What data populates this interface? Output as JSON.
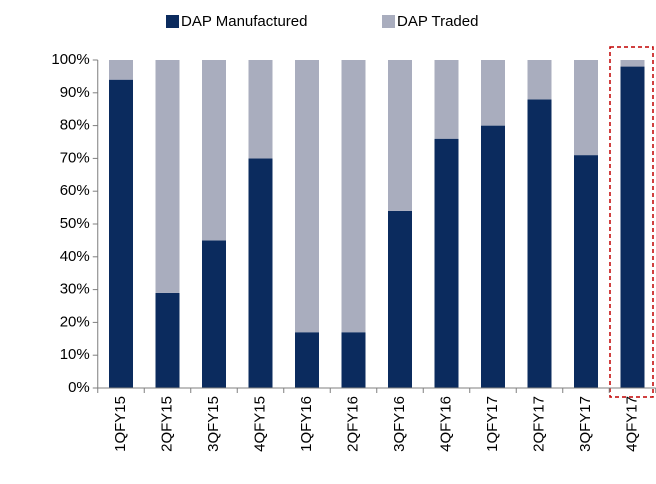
{
  "chart_data": {
    "type": "stacked_bar",
    "categories": [
      "1QFY15",
      "2QFY15",
      "3QFY15",
      "4QFY15",
      "1QFY16",
      "2QFY16",
      "3QFY16",
      "4QFY16",
      "1QFY17",
      "2QFY17",
      "3QFY17",
      "4QFY17"
    ],
    "series": [
      {
        "name": "DAP Manufactured",
        "color": "#0b2b5e",
        "values": [
          94,
          29,
          45,
          70,
          17,
          17,
          54,
          76,
          80,
          88,
          71,
          98
        ]
      },
      {
        "name": "DAP Traded",
        "color": "#a9adbe",
        "values": [
          6,
          71,
          55,
          30,
          83,
          83,
          46,
          24,
          20,
          12,
          29,
          2
        ]
      }
    ],
    "ylim": [
      0,
      100
    ],
    "yticks": [
      {
        "value": 0,
        "label": "0%"
      },
      {
        "value": 10,
        "label": "10%"
      },
      {
        "value": 20,
        "label": "20%"
      },
      {
        "value": 30,
        "label": "30%"
      },
      {
        "value": 40,
        "label": "40%"
      },
      {
        "value": 50,
        "label": "50%"
      },
      {
        "value": 60,
        "label": "60%"
      },
      {
        "value": 70,
        "label": "70%"
      },
      {
        "value": 80,
        "label": "80%"
      },
      {
        "value": 90,
        "label": "90%"
      },
      {
        "value": 100,
        "label": "100%"
      }
    ],
    "legend": "top"
  }
}
